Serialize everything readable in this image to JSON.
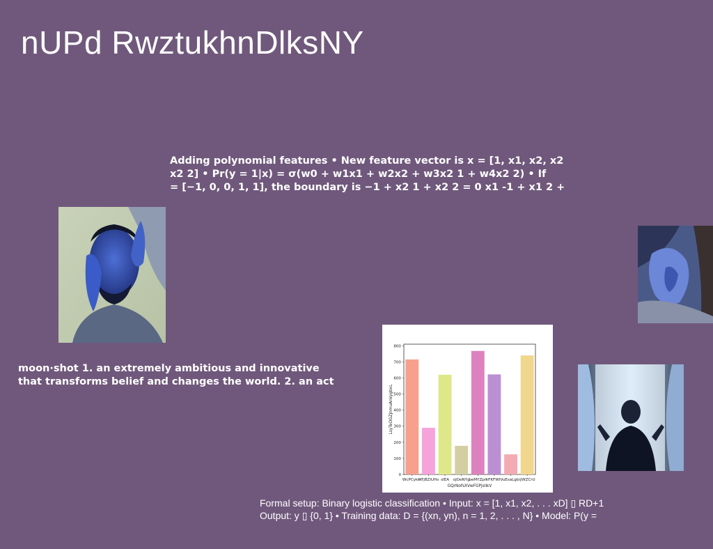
{
  "slide": {
    "title": "nUPd RwztukhnDlksNY",
    "polynomial_text": {
      "line1": "Adding polynomial features • New feature vector is x = [1, x1, x2, x2",
      "line2": "x2 2] • Pr(y = 1|x) = σ(w0 + w1x1 + w2x2 + w3x2 1 + w4x2 2) • If",
      "line3": "= [−1, 0, 0, 1, 1], the boundary is −1 + x2 1 + x2 2 = 0 x1 -1 + x1 2 +"
    },
    "moonshot_text": {
      "line1": "moon·shot 1. an extremely ambitious and innovative",
      "line2": "that transforms belief and changes the world. 2. an act"
    },
    "formal_text": {
      "line1": "Formal setup: Binary logistic classification • Input: x = [1, x1, x2, . . . xD] ▯ RD+1",
      "line2": "Output: y ▯ {0, 1} • Training data: D = {(xn, yn), n = 1, 2, . . . , N} • Model: P(y ="
    },
    "images": {
      "man_photo": "photo of a man resting his head with hands on face",
      "hand_photo": "close-up photo of a hand",
      "window_photo": "woman standing at a window with curtains"
    }
  },
  "chart_data": {
    "type": "bar",
    "categories": [
      "WcPCykm",
      "frTjBZiUHs",
      "sIEA",
      "oJOeNYg",
      "beMYZpn",
      "hFKFWIV",
      "uEsaLgb",
      "iJWZCrU"
    ],
    "values": [
      715,
      290,
      620,
      178,
      768,
      622,
      125,
      740
    ],
    "colors": [
      "#f8a08e",
      "#f7a3db",
      "#dfe888",
      "#d3cfa3",
      "#dd82be",
      "#bc8fd3",
      "#f4aab3",
      "#f1d68e"
    ],
    "xlabel": "GQrNofsXVwFGPjsIIkV",
    "ylabel": "LsyTeOGZjnmuAnkygbxL",
    "yticks": [
      0,
      100,
      200,
      300,
      400,
      500,
      600,
      700,
      800
    ],
    "ylim": [
      0,
      810
    ],
    "grid": false
  }
}
